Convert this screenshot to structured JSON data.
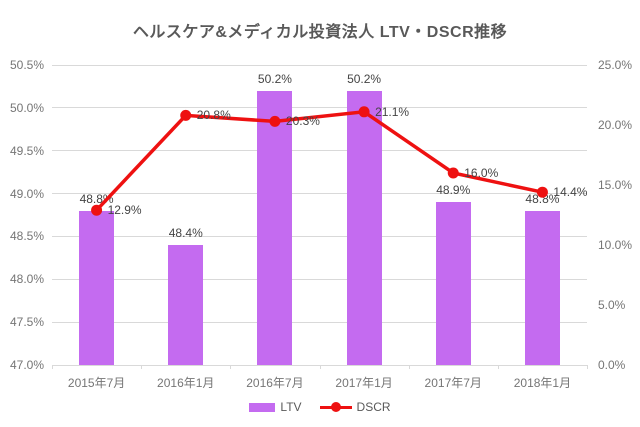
{
  "title": "ヘルスケア&メディカル投資法人 LTV・DSCR推移",
  "colors": {
    "bar": "#c46bf0",
    "line": "#ee1111",
    "grid": "#d9d9d9",
    "tick_text": "#757575",
    "label_text": "#444444",
    "title_text": "#595959"
  },
  "legend": {
    "position": "bottom",
    "items": [
      {
        "label": "LTV",
        "swatch": "bar"
      },
      {
        "label": "DSCR",
        "swatch": "line-marker"
      }
    ]
  },
  "chart_data": {
    "type": "bar+line combo",
    "title": "ヘルスケア&メディカル投資法人 LTV・DSCR推移",
    "categories": [
      "2015年7月",
      "2016年1月",
      "2016年7月",
      "2017年1月",
      "2017年7月",
      "2018年1月"
    ],
    "series": [
      {
        "name": "LTV",
        "type": "bar",
        "axis": "left",
        "values": [
          48.8,
          48.4,
          50.2,
          50.2,
          48.9,
          48.8
        ],
        "data_labels": [
          "48.8%",
          "48.4%",
          "50.2%",
          "50.2%",
          "48.9%",
          "48.8%"
        ]
      },
      {
        "name": "DSCR",
        "type": "line",
        "axis": "right",
        "values": [
          12.9,
          20.8,
          20.3,
          21.1,
          16.0,
          14.4
        ],
        "data_labels": [
          "12.9%",
          "20.8%",
          "20.3%",
          "21.1%",
          "16.0%",
          "14.4%"
        ]
      }
    ],
    "left_axis": {
      "min": 47.0,
      "max": 50.5,
      "step": 0.5,
      "tick_labels": [
        "50.5%",
        "50.0%",
        "49.5%",
        "49.0%",
        "48.5%",
        "48.0%",
        "47.5%",
        "47.0%"
      ]
    },
    "right_axis": {
      "min": 0.0,
      "max": 25.0,
      "step": 5.0,
      "tick_labels": [
        "25.0%",
        "20.0%",
        "15.0%",
        "10.0%",
        "5.0%",
        "0.0%"
      ]
    },
    "grid": true,
    "legend_position": "bottom"
  }
}
